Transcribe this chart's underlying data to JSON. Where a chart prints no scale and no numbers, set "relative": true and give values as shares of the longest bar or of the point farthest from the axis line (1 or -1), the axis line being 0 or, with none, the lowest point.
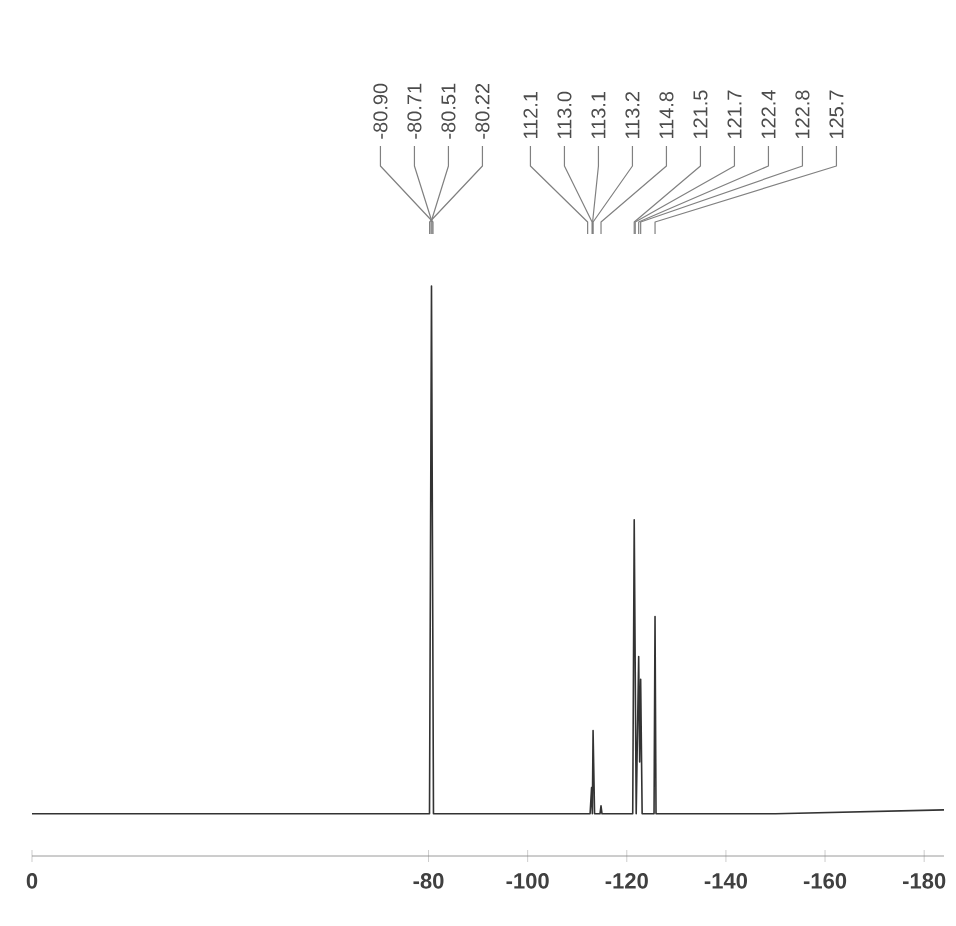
{
  "chart_data": {
    "type": "line",
    "relative": true,
    "color": "#333333",
    "x": [
      0,
      -80.2,
      -80.6,
      -81.0,
      -112.6,
      -112.9,
      -113.05,
      -113.2,
      -113.5,
      -114.6,
      -114.8,
      -115.0,
      -121.2,
      -121.5,
      -121.9,
      -122.4,
      -122.6,
      -122.8,
      -123.1,
      -125.5,
      -125.7,
      -125.9,
      -150,
      -184
    ],
    "values": [
      0.074,
      0.074,
      1,
      0.074,
      0.074,
      0.12,
      0.074,
      0.22,
      0.074,
      0.074,
      0.088,
      0.074,
      0.074,
      0.59,
      0.074,
      0.35,
      0.165,
      0.31,
      0.074,
      0.074,
      0.42,
      0.074,
      0.074,
      0.081
    ],
    "xlim": [
      0,
      -184
    ],
    "xticks": [
      0,
      -80,
      -100,
      -120,
      -140,
      -160,
      -180
    ],
    "annotations": [
      {
        "text": "-80.90",
        "x": -80.9
      },
      {
        "text": "-80.71",
        "x": -80.71
      },
      {
        "text": "-80.51",
        "x": -80.51
      },
      {
        "text": "-80.22",
        "x": -80.22
      },
      {
        "text": "112.1",
        "x": -112.1
      },
      {
        "text": "113.0",
        "x": -113.0
      },
      {
        "text": "113.1",
        "x": -113.1
      },
      {
        "text": "113.2",
        "x": -113.2
      },
      {
        "text": "114.8",
        "x": -114.8
      },
      {
        "text": "121.5",
        "x": -121.5
      },
      {
        "text": "121.7",
        "x": -121.7
      },
      {
        "text": "122.4",
        "x": -122.4
      },
      {
        "text": "122.8",
        "x": -122.8
      },
      {
        "text": "125.7",
        "x": -125.7
      }
    ]
  }
}
